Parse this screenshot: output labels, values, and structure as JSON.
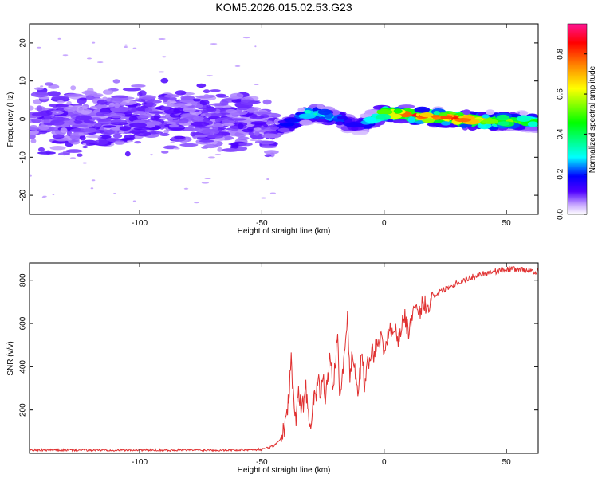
{
  "title": "KOM5.2026.015.02.53.G23",
  "chart_data": [
    {
      "type": "heatmap",
      "xlabel": "Height of straight line (km)",
      "ylabel": "Frequency (Hz)",
      "xlim": [
        -145,
        63
      ],
      "ylim": [
        -25,
        25
      ],
      "xticks": [
        -100,
        -50,
        0,
        50
      ],
      "xtick_labels": [
        "-100",
        "-50",
        "0",
        "50"
      ],
      "yticks": [
        -20,
        -10,
        0,
        10,
        20
      ],
      "ytick_labels": [
        "-20",
        "-10",
        "0",
        "10",
        "20"
      ],
      "colorbar": {
        "label": "Normalized spectral amplitude",
        "range": [
          0,
          0.95
        ],
        "ticks": [
          0.0,
          0.2,
          0.4,
          0.6,
          0.8
        ],
        "tick_labels": [
          "0.0",
          "0.2",
          "0.4",
          "0.6",
          "0.8"
        ],
        "stops": [
          "#ffffff",
          "#c8a8ff",
          "#5000ff",
          "#0000ff",
          "#00ffff",
          "#00ff00",
          "#ffff00",
          "#ff8800",
          "#ff0000",
          "#ff1493"
        ]
      },
      "ridge": {
        "x": [
          -145,
          -130,
          -115,
          -100,
          -85,
          -70,
          -60,
          -50,
          -46,
          -42,
          -38,
          -34,
          -30,
          -26,
          -22,
          -18,
          -14,
          -10,
          -6,
          -2,
          0,
          10,
          20,
          30,
          40,
          50,
          63
        ],
        "frequency": [
          0,
          -0.5,
          0.5,
          0,
          0.5,
          -1,
          0,
          -1,
          -3.5,
          -2,
          -1,
          0.5,
          1.5,
          1.5,
          0.5,
          0,
          -1.5,
          -2,
          -0.5,
          1,
          1.5,
          1.2,
          0.5,
          0,
          -0.5,
          -0.5,
          -0.8
        ],
        "amplitude": [
          0.1,
          0.1,
          0.1,
          0.1,
          0.1,
          0.1,
          0.1,
          0.1,
          0.12,
          0.18,
          0.22,
          0.3,
          0.38,
          0.35,
          0.3,
          0.25,
          0.18,
          0.15,
          0.3,
          0.5,
          0.7,
          0.85,
          0.9,
          0.85,
          0.7,
          0.55,
          0.45
        ]
      }
    },
    {
      "type": "line",
      "xlabel": "Height of straight line (km)",
      "ylabel": "SNR (v/v)",
      "xlim": [
        -145,
        63
      ],
      "ylim": [
        0,
        880
      ],
      "xticks": [
        -100,
        -50,
        0,
        50
      ],
      "xtick_labels": [
        "-100",
        "-50",
        "0",
        "50"
      ],
      "yticks": [
        200,
        400,
        600,
        800
      ],
      "ytick_labels": [
        "200",
        "400",
        "600",
        "800"
      ],
      "color": "#e03030",
      "series": [
        {
          "x": [
            -145,
            -120,
            -100,
            -80,
            -60,
            -50,
            -45,
            -42,
            -40,
            -39,
            -38,
            -37,
            -36,
            -35,
            -34,
            -33,
            -32,
            -31,
            -30,
            -29,
            -28,
            -27,
            -26,
            -25,
            -24,
            -23,
            -22,
            -21,
            -20,
            -19,
            -18,
            -17,
            -16,
            -15,
            -14,
            -13,
            -12,
            -11,
            -10,
            -9,
            -8,
            -7,
            -6,
            -5,
            -4,
            -3,
            -2,
            -1,
            0,
            2,
            4,
            6,
            8,
            10,
            12,
            14,
            16,
            18,
            20,
            25,
            30,
            35,
            40,
            45,
            50,
            55,
            63
          ],
          "values": [
            15,
            15,
            15,
            15,
            15,
            18,
            35,
            70,
            150,
            260,
            440,
            230,
            170,
            280,
            220,
            230,
            300,
            200,
            130,
            250,
            270,
            330,
            290,
            380,
            260,
            330,
            450,
            320,
            400,
            550,
            230,
            350,
            520,
            620,
            350,
            460,
            410,
            280,
            350,
            470,
            300,
            400,
            420,
            520,
            430,
            540,
            480,
            560,
            480,
            550,
            600,
            520,
            640,
            570,
            650,
            640,
            700,
            680,
            730,
            760,
            790,
            810,
            830,
            840,
            850,
            850,
            840
          ]
        }
      ]
    }
  ]
}
